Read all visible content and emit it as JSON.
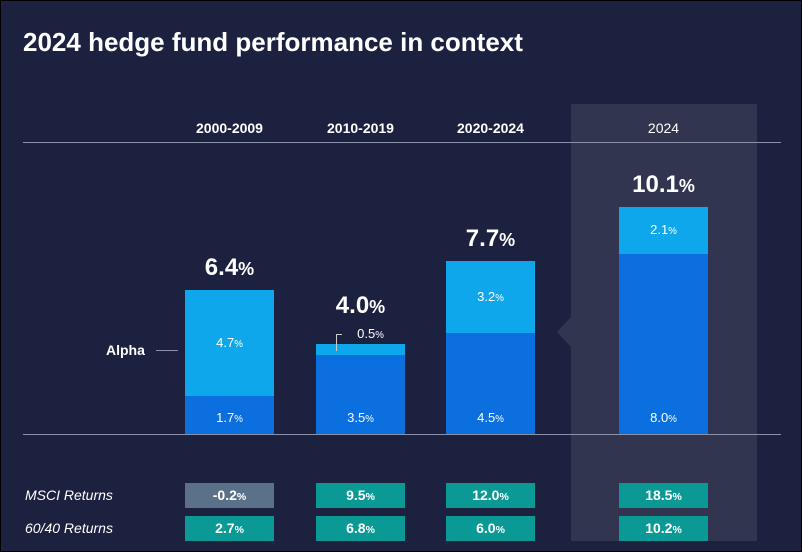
{
  "title": "2024 hedge fund performance in context",
  "chart_data": {
    "type": "bar",
    "stacked": true,
    "title": "2024 hedge fund performance in context",
    "categories": [
      "2000-2009",
      "2010-2019",
      "2020-2024",
      "2024"
    ],
    "series": [
      {
        "values": [
          1.7,
          3.5,
          4.5,
          8.0
        ],
        "color": "#0b6fe0"
      },
      {
        "name": "Alpha",
        "values": [
          4.7,
          0.5,
          3.2,
          2.1
        ],
        "color": "#0fa7ec"
      }
    ],
    "totals": [
      6.4,
      4.0,
      7.7,
      10.1
    ],
    "highlight_category": "2024",
    "table": {
      "rows": [
        {
          "label": "MSCI Returns",
          "values": [
            -0.2,
            9.5,
            12.0,
            18.5
          ]
        },
        {
          "label": "60/40 Returns",
          "values": [
            2.7,
            6.8,
            6.0,
            10.2
          ]
        }
      ],
      "positive_color": "#0a9994",
      "negative_color": "#5a7189"
    },
    "unit": "%"
  },
  "colors": {
    "background": "#1d2140",
    "highlight_panel": "#32354f"
  }
}
